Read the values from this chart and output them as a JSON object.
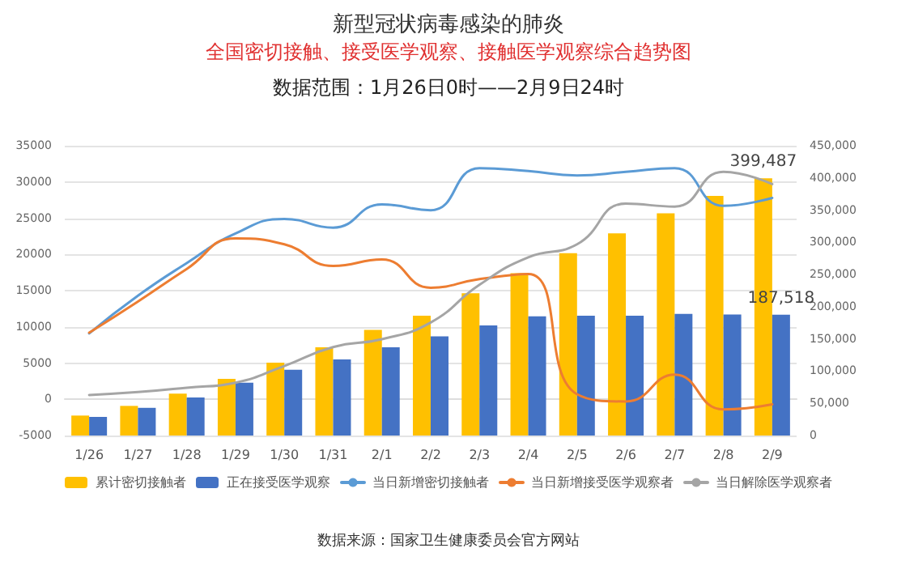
{
  "chart_data": {
    "type": "bar",
    "title": "新型冠状病毒感染的肺炎",
    "subtitle": "全国密切接触、接受医学观察、接触医学观察综合趋势图",
    "annotations": [
      "数据范围：1月26日0时——2月9日24时",
      "数据来源：国家卫生健康委员会官方网站"
    ],
    "categories": [
      "1/26",
      "1/27",
      "1/28",
      "1/29",
      "1/30",
      "1/31",
      "2/1",
      "2/2",
      "2/3",
      "2/4",
      "2/5",
      "2/6",
      "2/7",
      "2/8",
      "2/9"
    ],
    "series": [
      {
        "name": "累计密切接触者",
        "axis": "y2",
        "color": "#ffc000",
        "values": [
          31000,
          46000,
          65000,
          88000,
          113000,
          137000,
          164000,
          186000,
          221000,
          252000,
          283000,
          314000,
          345000,
          372000,
          399487
        ],
        "value_labels": [
          null,
          null,
          null,
          null,
          null,
          null,
          null,
          null,
          null,
          null,
          null,
          null,
          null,
          null,
          "399,487"
        ]
      },
      {
        "name": "正在接受医学观察",
        "axis": "y2",
        "color": "#4472c4",
        "values": [
          29000,
          43000,
          59000,
          82000,
          102000,
          118000,
          137000,
          154000,
          171000,
          185000,
          186000,
          186000,
          189000,
          188000,
          187518
        ],
        "value_labels": [
          null,
          null,
          null,
          null,
          null,
          null,
          null,
          null,
          null,
          null,
          null,
          null,
          null,
          null,
          "187,518"
        ]
      },
      {
        "name": "当日新增密切接触者",
        "type": "line",
        "axis": "y",
        "color": "#5b9bd5",
        "values": [
          9100,
          14300,
          18800,
          22900,
          24900,
          23700,
          26900,
          26100,
          31900,
          31500,
          30900,
          31400,
          31900,
          26700,
          27800
        ]
      },
      {
        "name": "当日新增接受医学观察者",
        "type": "line",
        "axis": "y",
        "color": "#ed7d31",
        "values": [
          9200,
          13500,
          18000,
          22200,
          21400,
          18400,
          19300,
          15400,
          16600,
          17300,
          700,
          -300,
          3400,
          -1400,
          -700
        ]
      },
      {
        "name": "当日解除医学观察者",
        "type": "line",
        "axis": "y",
        "color": "#a5a5a5",
        "values": [
          600,
          1000,
          1600,
          2300,
          4600,
          7200,
          8300,
          10600,
          15800,
          19600,
          21400,
          27000,
          26600,
          31400,
          29700
        ]
      }
    ],
    "ylim": [
      -5000,
      35000
    ],
    "yticks": [
      -5000,
      0,
      5000,
      10000,
      15000,
      20000,
      25000,
      30000,
      35000
    ],
    "y2lim": [
      0,
      450000
    ],
    "y2ticks": [
      {
        "value": 0,
        "label": "0"
      },
      {
        "value": 50000,
        "label": "50,000"
      },
      {
        "value": 100000,
        "label": "100,000"
      },
      {
        "value": 150000,
        "label": "150,000"
      },
      {
        "value": 200000,
        "label": "200,000"
      },
      {
        "value": 250000,
        "label": "250,000"
      },
      {
        "value": 300000,
        "label": "300,000"
      },
      {
        "value": 350000,
        "label": "350,000"
      },
      {
        "value": 400000,
        "label": "400,000"
      },
      {
        "value": 450000,
        "label": "450,000"
      }
    ],
    "grid": "y",
    "legend": "bottom",
    "marker": "none",
    "line_style": "solid"
  }
}
